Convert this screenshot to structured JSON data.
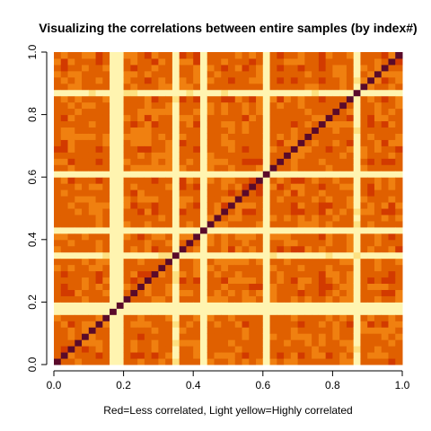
{
  "chart_data": {
    "type": "heatmap",
    "title": "Visualizing the correlations between entire samples (by index#)",
    "xlabel": "Red=Less correlated, Light yellow=Highly correlated",
    "ylabel": "",
    "xlim": [
      0,
      1
    ],
    "ylim": [
      0,
      1
    ],
    "x_ticks": [
      "0.0",
      "0.2",
      "0.4",
      "0.6",
      "0.8",
      "1.0"
    ],
    "y_ticks": [
      "0.0",
      "0.2",
      "0.4",
      "0.6",
      "0.8",
      "1.0"
    ],
    "grid_size": 50,
    "diagonal": "darkest (self-correlation)",
    "bright_sample_positions": [
      0.16,
      0.17,
      0.34,
      0.42,
      0.59,
      0.86
    ],
    "color_scale": [
      "#8b0000",
      "#b22000",
      "#d23a00",
      "#e06000",
      "#f08010",
      "#f8b040",
      "#fde080",
      "#fff4b0"
    ],
    "diagonal_color": "#5a0a2a"
  }
}
